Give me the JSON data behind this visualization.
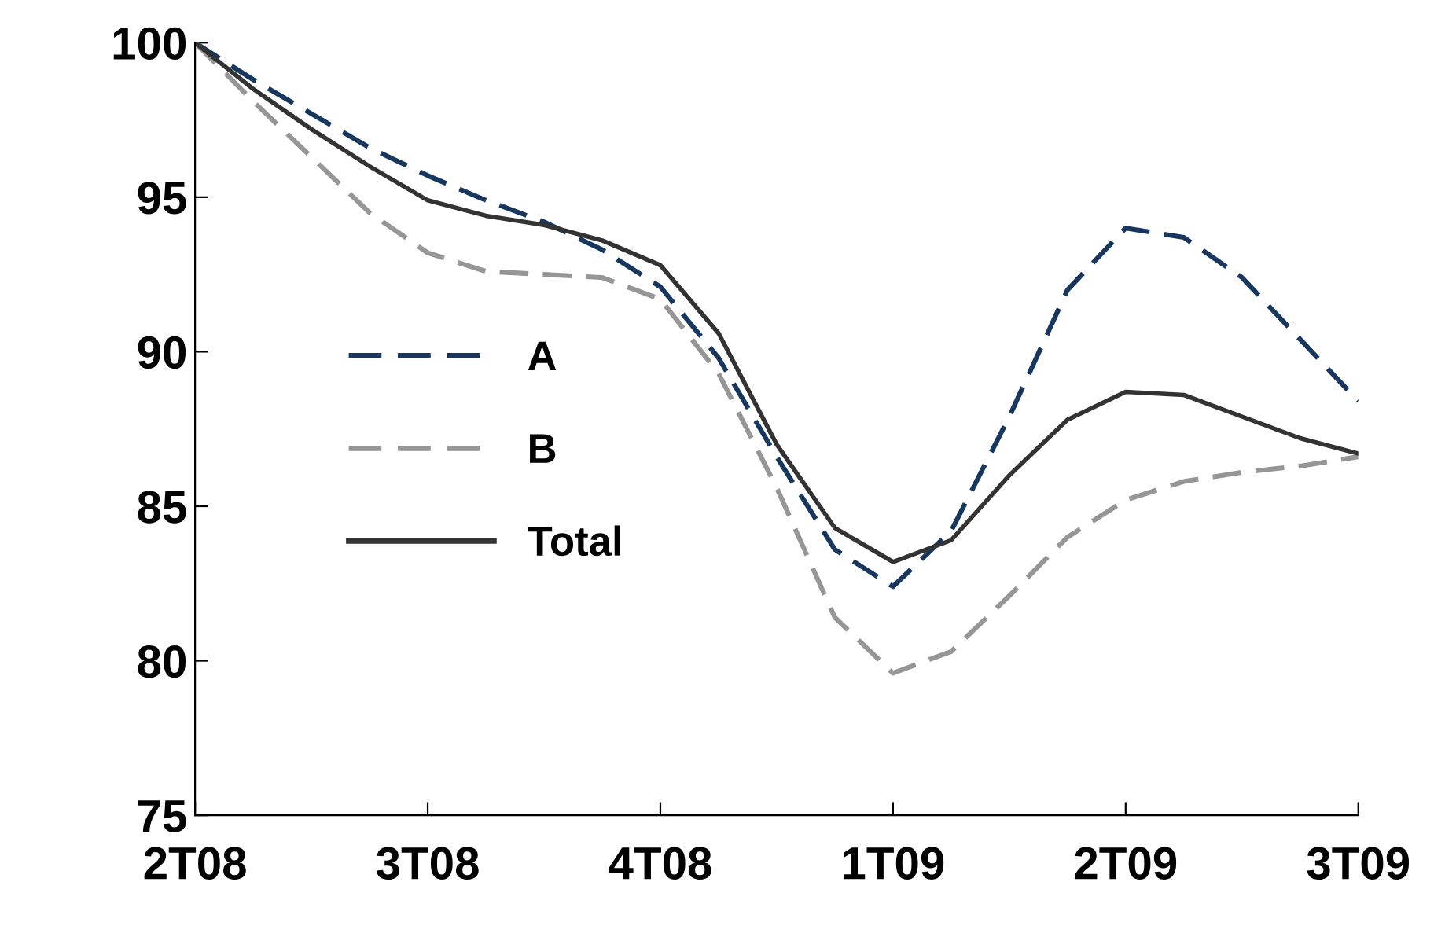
{
  "chart_data": {
    "type": "line",
    "categories": [
      "2T08",
      null,
      null,
      null,
      "3T08",
      null,
      null,
      null,
      "4T08",
      null,
      null,
      null,
      "1T09",
      null,
      null,
      null,
      "2T09",
      null,
      null,
      null,
      "3T09"
    ],
    "series": [
      {
        "name": "A",
        "color": "#17375e",
        "line_style": "dashed",
        "values": [
          100,
          98.8,
          97.7,
          96.6,
          95.7,
          94.9,
          94.2,
          93.3,
          92.1,
          89.8,
          86.6,
          83.6,
          82.4,
          84.2,
          87.9,
          92,
          94,
          93.7,
          92.4,
          90.4,
          88.4
        ]
      },
      {
        "name": "B",
        "color": "#969696",
        "line_style": "dashed",
        "values": [
          100,
          98.1,
          96.3,
          94.5,
          93.2,
          92.6,
          92.5,
          92.4,
          91.7,
          89.3,
          85.6,
          81.4,
          79.6,
          80.3,
          82.1,
          84,
          85.2,
          85.8,
          86.1,
          86.3,
          86.6
        ]
      },
      {
        "name": "Total",
        "color": "#333333",
        "line_style": "solid",
        "values": [
          100,
          98.5,
          97.2,
          96,
          94.9,
          94.4,
          94.1,
          93.6,
          92.8,
          90.6,
          87,
          84.3,
          83.2,
          83.9,
          86,
          87.8,
          88.7,
          88.6,
          87.9,
          87.2,
          86.7
        ]
      }
    ],
    "ylim": [
      75,
      100
    ],
    "yticks": [
      75,
      80,
      85,
      90,
      95,
      100
    ],
    "grid": false,
    "legend": "center left",
    "marker": "none"
  }
}
